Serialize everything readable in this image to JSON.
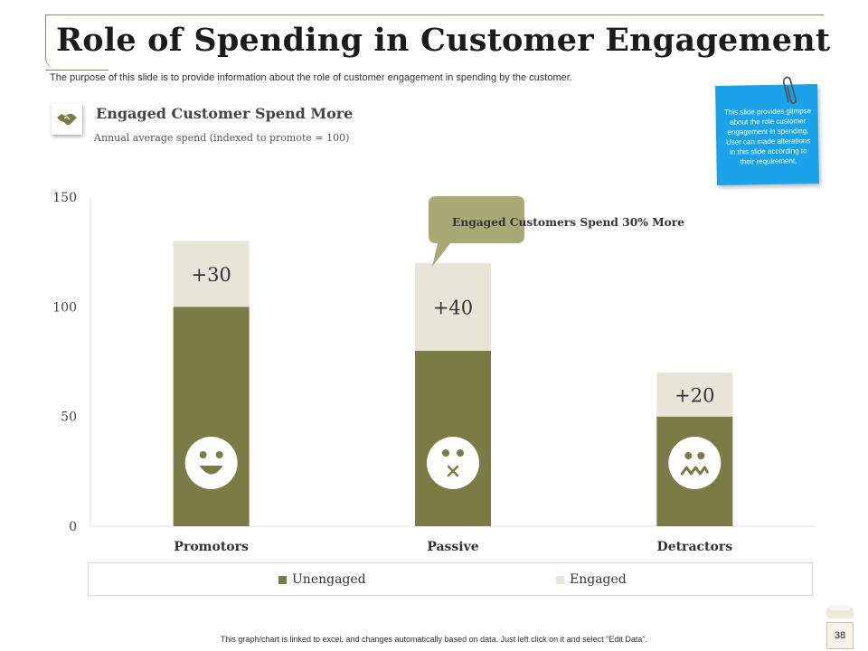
{
  "slide": {
    "title": "Role of Spending in Customer Engagement",
    "purpose": "The purpose of this slide is to provide information about the role of customer engagement in spending by the customer.",
    "section_title": "Engaged Customer Spend More",
    "section_subtitle": "Annual average spend (indexed to promote = 100)",
    "note": "This slide provides glimpse about the role customer engagement in spending. User can made alterations in this slide according to their requirement.",
    "footer": "This graph/chart is linked to excel, and changes automatically based on data. Just left click on it and select \"Edit Data\".",
    "page_number": "38"
  },
  "colors": {
    "unengaged": "#7b7c45",
    "engaged": "#e6e5d8",
    "callout": "#a9a975",
    "note": "#1aa3e8"
  },
  "chart_data": {
    "type": "bar",
    "stacked": true,
    "categories": [
      "Promotors",
      "Passive",
      "Detractors"
    ],
    "series": [
      {
        "name": "Unengaged",
        "values": [
          100,
          80,
          50
        ]
      },
      {
        "name": "Engaged",
        "values": [
          30,
          40,
          20
        ]
      }
    ],
    "data_labels": [
      "+30",
      "+40",
      "+20"
    ],
    "faces": [
      "smile-icon",
      "surprised-icon",
      "worried-icon"
    ],
    "yticks": [
      0,
      50,
      100,
      150
    ],
    "ylim": [
      0,
      150
    ],
    "legend": [
      "Unengaged",
      "Engaged"
    ],
    "legend_position": "bottom",
    "callout": "Engaged Customers Spend 30% More"
  }
}
